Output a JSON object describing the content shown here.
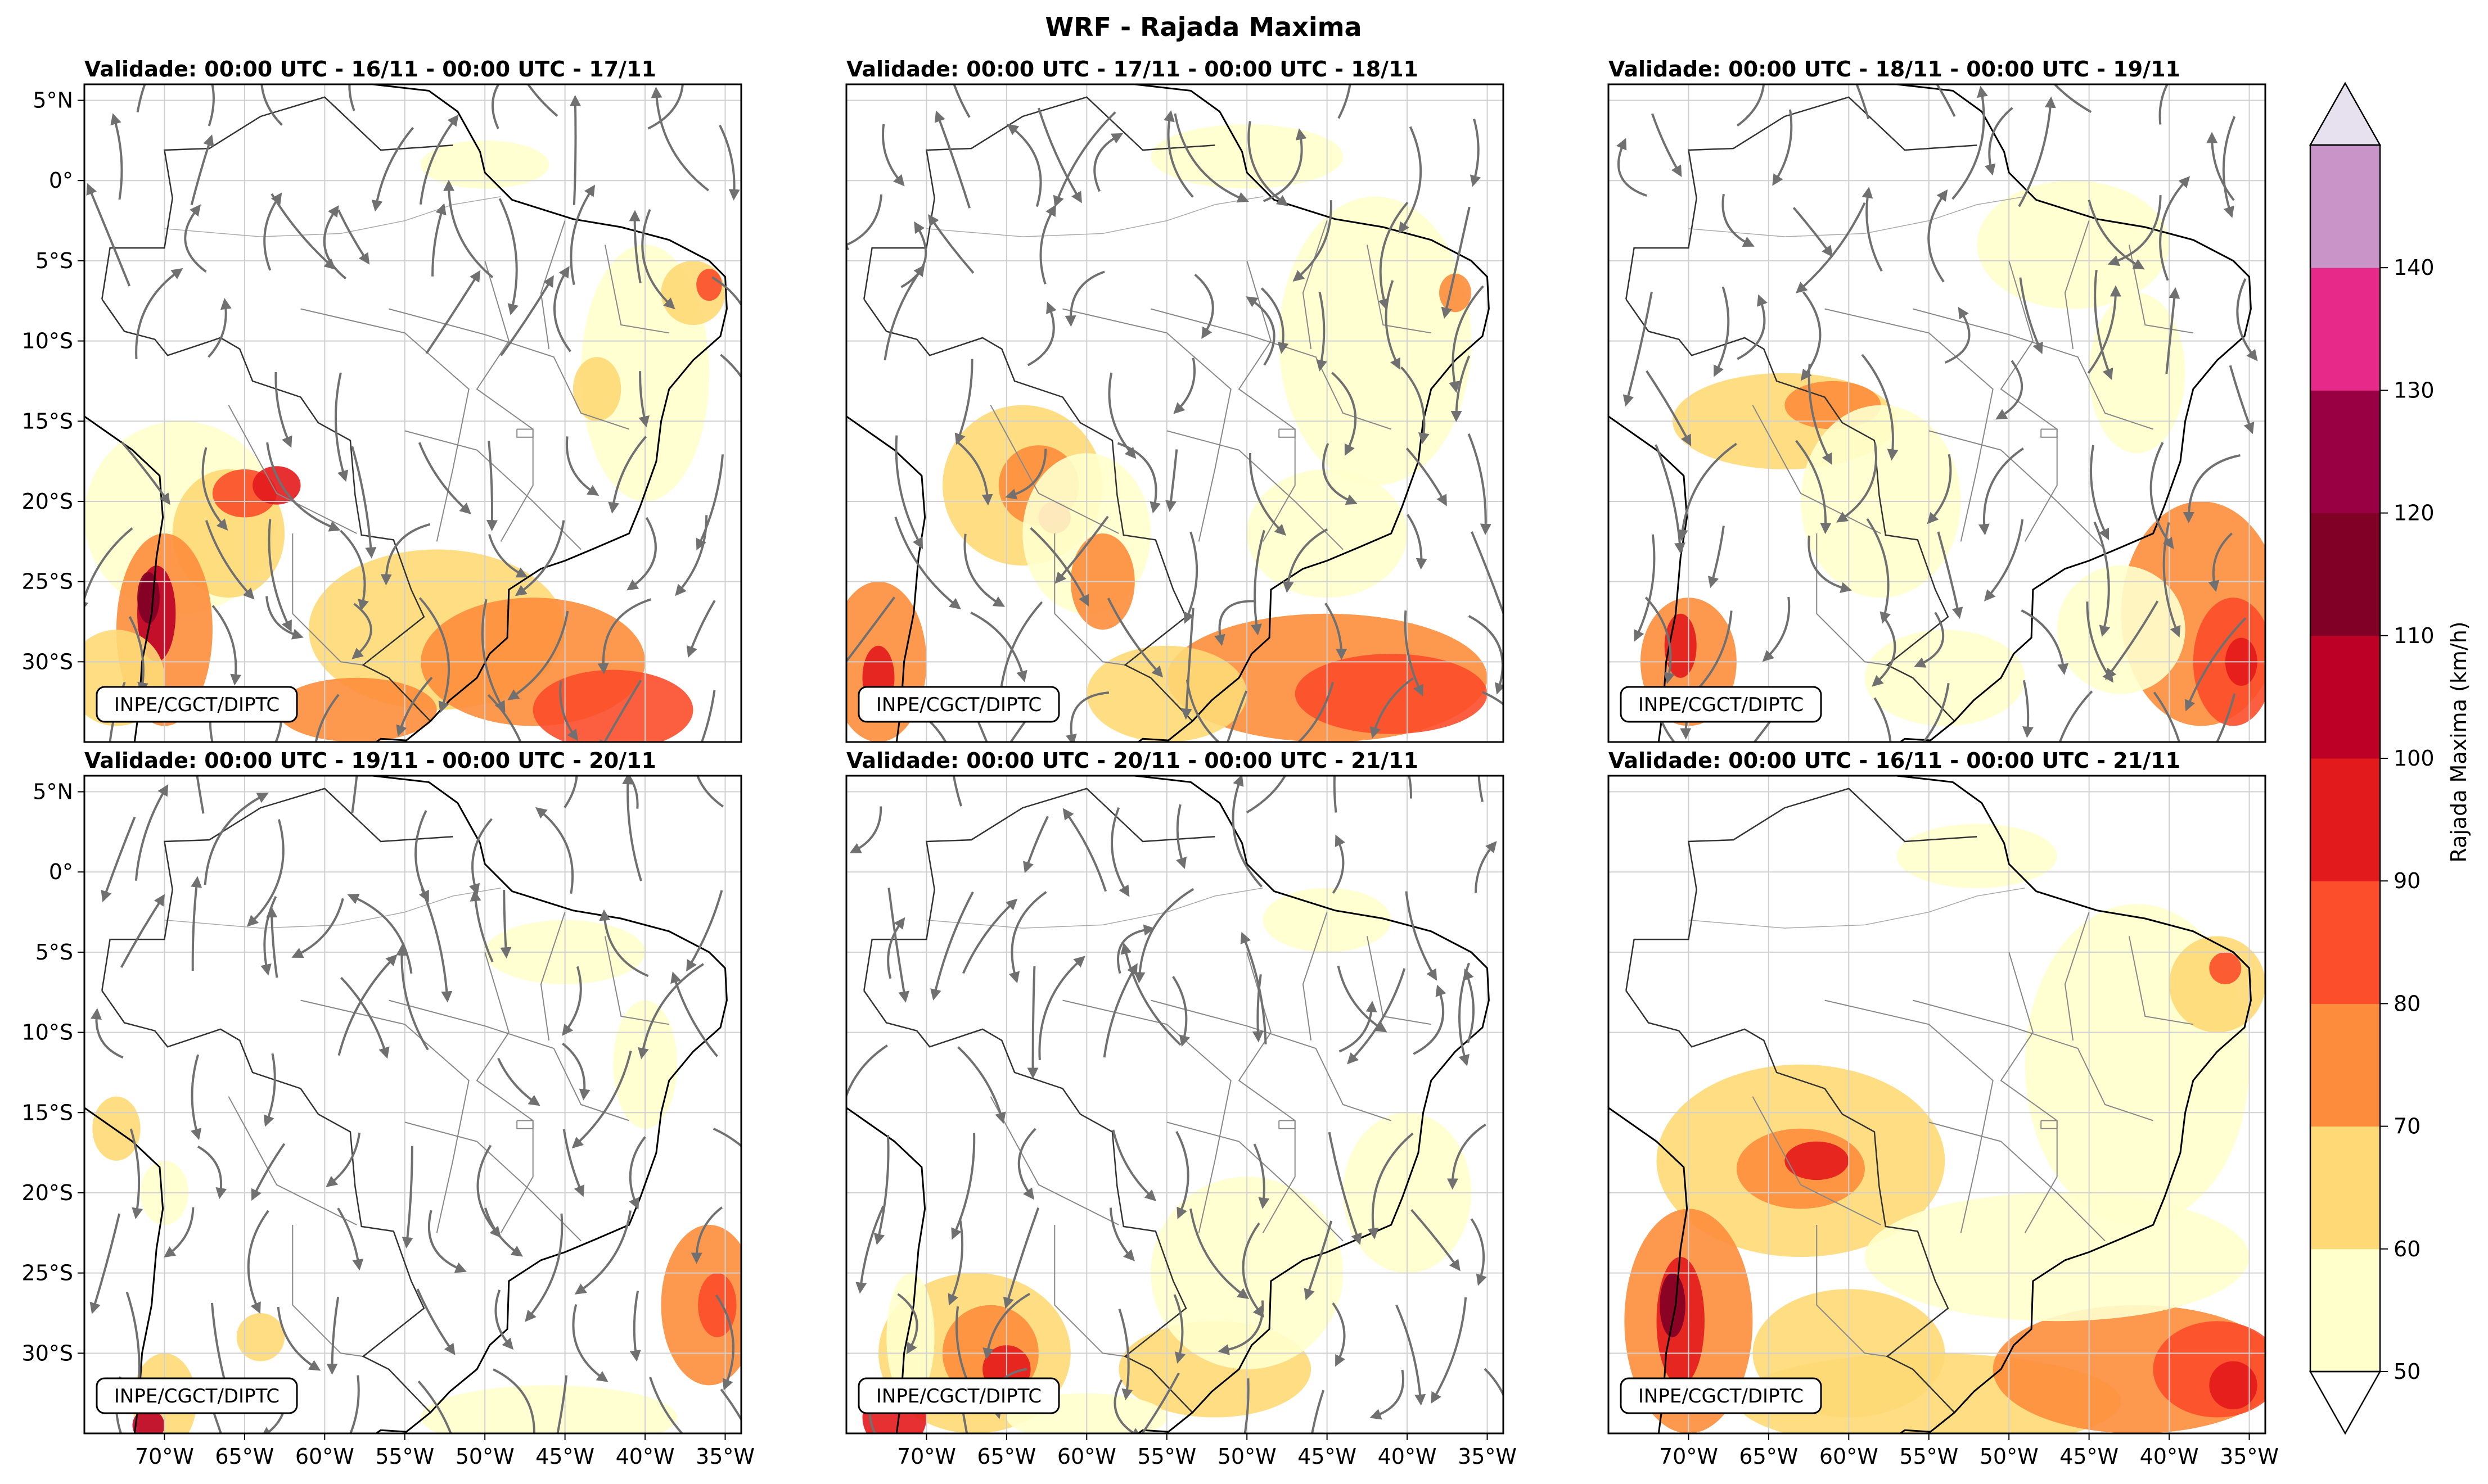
{
  "figure": {
    "title": "WRF - Rajada Maxima",
    "credit": "INPE/CGCT/DIPTC"
  },
  "axes": {
    "lat_labels": [
      "5°N",
      "0°",
      "5°S",
      "10°S",
      "15°S",
      "20°S",
      "25°S",
      "30°S"
    ],
    "lat_values": [
      5,
      0,
      -5,
      -10,
      -15,
      -20,
      -25,
      -30
    ],
    "lon_labels": [
      "70°W",
      "65°W",
      "60°W",
      "55°W",
      "50°W",
      "45°W",
      "40°W",
      "35°W"
    ],
    "lon_values": [
      -70,
      -65,
      -60,
      -55,
      -50,
      -45,
      -40,
      -35
    ],
    "lat_range": [
      -35,
      6
    ],
    "lon_range": [
      -75,
      -34
    ]
  },
  "panels": [
    {
      "title": "Validade: 00:00 UTC - 16/11 - 00:00 UTC - 17/11",
      "streamlines": true
    },
    {
      "title": "Validade: 00:00 UTC - 17/11 - 00:00 UTC - 18/11",
      "streamlines": true
    },
    {
      "title": "Validade: 00:00 UTC - 18/11 - 00:00 UTC - 19/11",
      "streamlines": true
    },
    {
      "title": "Validade: 00:00 UTC - 19/11 - 00:00 UTC - 20/11",
      "streamlines": true
    },
    {
      "title": "Validade: 00:00 UTC - 20/11 - 00:00 UTC - 21/11",
      "streamlines": true
    },
    {
      "title": "Validade: 00:00 UTC - 16/11 - 00:00 UTC - 21/11",
      "streamlines": false
    }
  ],
  "colorbar": {
    "label": "Rajada Maxima (km/h)",
    "ticks": [
      "50",
      "60",
      "70",
      "80",
      "90",
      "100",
      "110",
      "120",
      "130",
      "140"
    ],
    "colors": [
      "#ffffcc",
      "#fed976",
      "#fd8d3c",
      "#fc4e2a",
      "#e31a1c",
      "#bd0026",
      "#800026",
      "#980043",
      "#e7298a",
      "#c994c7"
    ],
    "under_color": "#ffffff",
    "over_color": "#e7e1ef"
  },
  "colors": {
    "streamline": "#707070",
    "coast": "#000000",
    "border": "#888888",
    "grid": "#d0d0d0"
  }
}
